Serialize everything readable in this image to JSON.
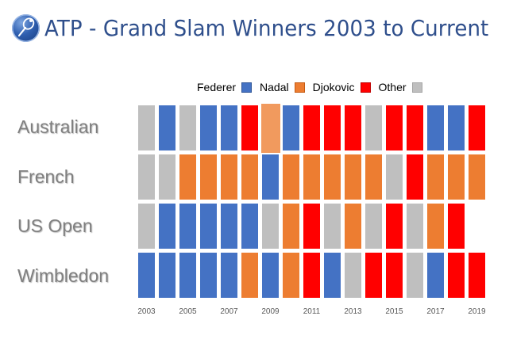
{
  "header": {
    "title": "ATP - Grand Slam Winners 2003 to Current",
    "logo_icon": "tennis-racket-icon"
  },
  "legend": [
    {
      "label": "Federer",
      "color": "#4472C4"
    },
    {
      "label": "Nadal",
      "color": "#ED7D31"
    },
    {
      "label": "Djokovic",
      "color": "#FF0000"
    },
    {
      "label": "Other",
      "color": "#BFBFBF"
    }
  ],
  "colors": {
    "Federer": "#4472C4",
    "Nadal": "#ED7D31",
    "Djokovic": "#FF0000",
    "Other": "#BFBFBF",
    "selected_highlight": "#F19A5E"
  },
  "rows": [
    {
      "label": "Australian"
    },
    {
      "label": "French"
    },
    {
      "label": "US Open"
    },
    {
      "label": "Wimbledon"
    }
  ],
  "x_ticks": [
    "2003",
    "2005",
    "2007",
    "2009",
    "2011",
    "2013",
    "2015",
    "2017",
    "2019"
  ],
  "chart_data": {
    "type": "heatmap",
    "title": "ATP - Grand Slam Winners 2003 to Current",
    "xlabel": "",
    "ylabel": "",
    "x": [
      2003,
      2004,
      2005,
      2006,
      2007,
      2008,
      2009,
      2010,
      2011,
      2012,
      2013,
      2014,
      2015,
      2016,
      2017,
      2018,
      2019
    ],
    "x_tick_labels": [
      "2003",
      "2005",
      "2007",
      "2009",
      "2011",
      "2013",
      "2015",
      "2017",
      "2019"
    ],
    "categories": [
      "Australian",
      "French",
      "US Open",
      "Wimbledon"
    ],
    "legend": [
      "Federer",
      "Nadal",
      "Djokovic",
      "Other"
    ],
    "legend_position": "top",
    "grid": false,
    "series": [
      {
        "name": "Australian",
        "values": [
          "Other",
          "Federer",
          "Other",
          "Federer",
          "Federer",
          "Djokovic",
          "Nadal",
          "Federer",
          "Djokovic",
          "Djokovic",
          "Djokovic",
          "Other",
          "Djokovic",
          "Djokovic",
          "Federer",
          "Federer",
          "Djokovic"
        ]
      },
      {
        "name": "French",
        "values": [
          "Other",
          "Other",
          "Nadal",
          "Nadal",
          "Nadal",
          "Nadal",
          "Federer",
          "Nadal",
          "Nadal",
          "Nadal",
          "Nadal",
          "Nadal",
          "Other",
          "Djokovic",
          "Nadal",
          "Nadal",
          "Nadal"
        ]
      },
      {
        "name": "US Open",
        "values": [
          "Other",
          "Federer",
          "Federer",
          "Federer",
          "Federer",
          "Federer",
          "Other",
          "Nadal",
          "Djokovic",
          "Other",
          "Nadal",
          "Other",
          "Djokovic",
          "Other",
          "Nadal",
          "Djokovic",
          null
        ]
      },
      {
        "name": "Wimbledon",
        "values": [
          "Federer",
          "Federer",
          "Federer",
          "Federer",
          "Federer",
          "Nadal",
          "Federer",
          "Nadal",
          "Djokovic",
          "Federer",
          "Other",
          "Djokovic",
          "Djokovic",
          "Other",
          "Federer",
          "Djokovic",
          "Djokovic"
        ]
      }
    ],
    "selected_cell": {
      "row": "Australian",
      "year": 2009
    }
  }
}
